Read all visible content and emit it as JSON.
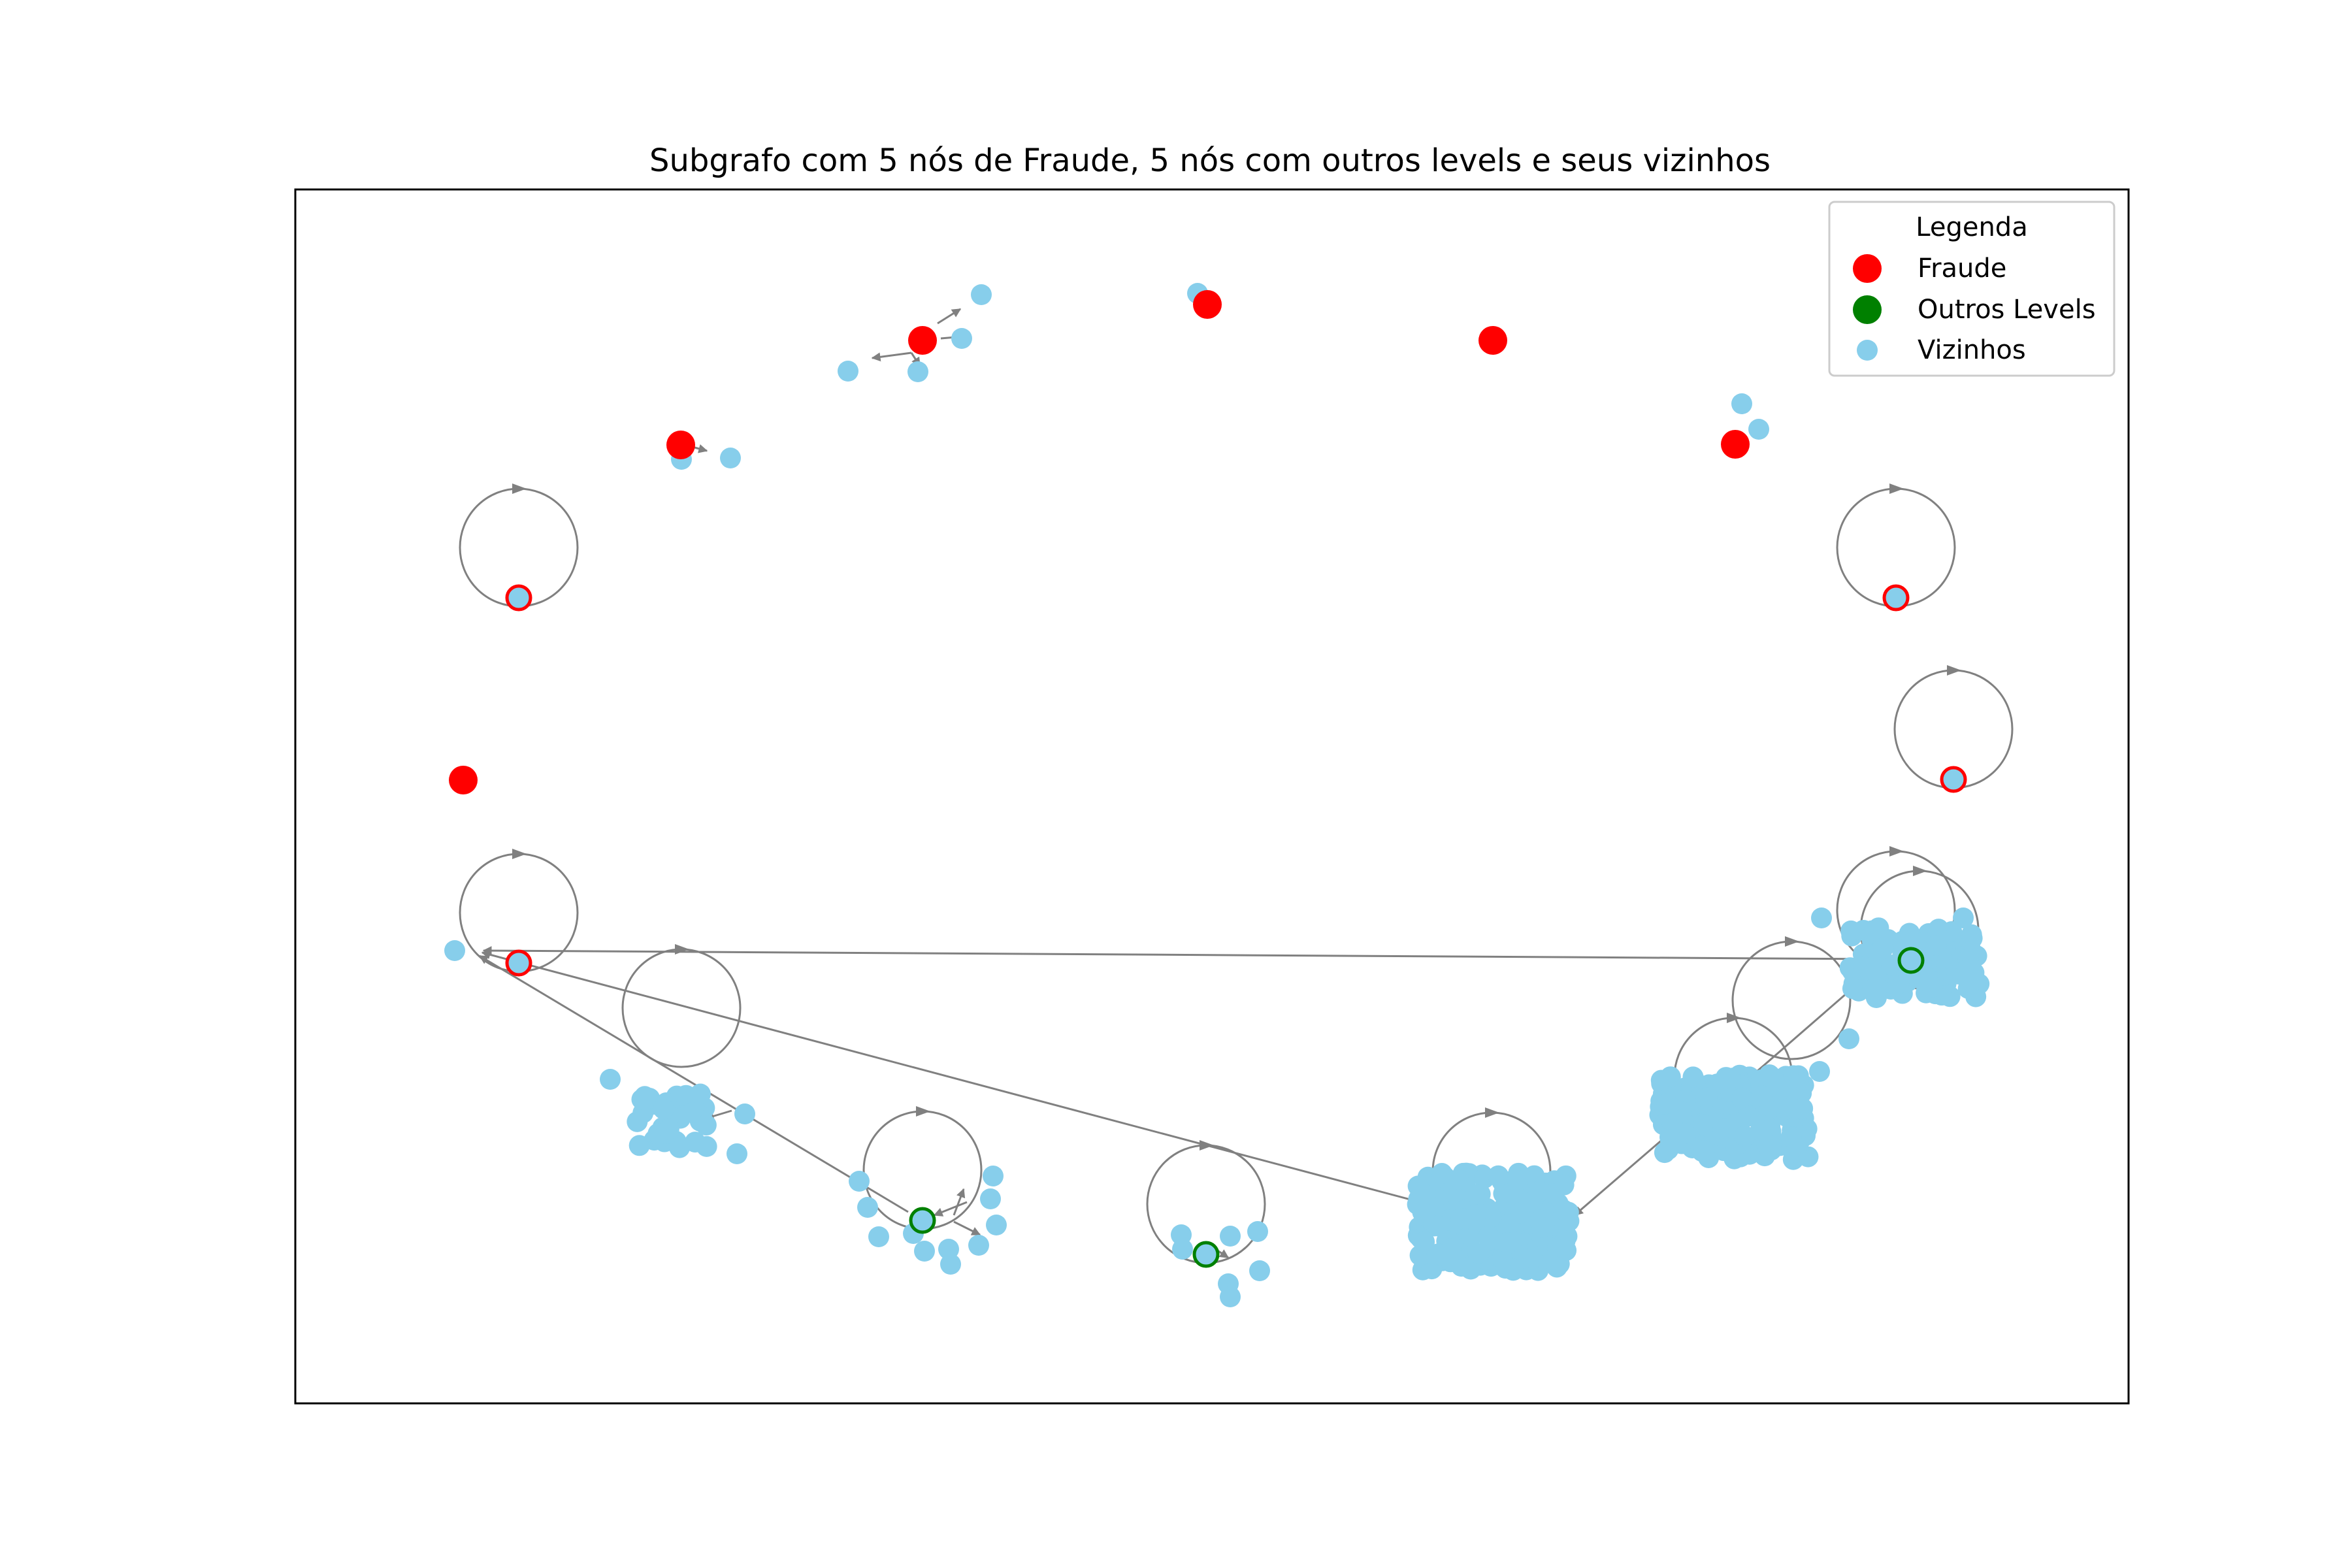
{
  "title": "Subgrafo com 5 nós de Fraude, 5 nós com outros levels e seus vizinhos",
  "legend": {
    "title": "Legenda",
    "items": [
      {
        "label": "Fraude",
        "color": "#ff0000",
        "kind": "fraude"
      },
      {
        "label": "Outros Levels",
        "color": "#008000",
        "kind": "outros"
      },
      {
        "label": "Vizinhos",
        "color": "#87ceeb",
        "kind": "vizinho"
      }
    ]
  },
  "colors": {
    "fraude": "#ff0000",
    "outros": "#008000",
    "vizinho": "#87ceeb",
    "edge": "#808080",
    "frame": "#000000"
  }
}
